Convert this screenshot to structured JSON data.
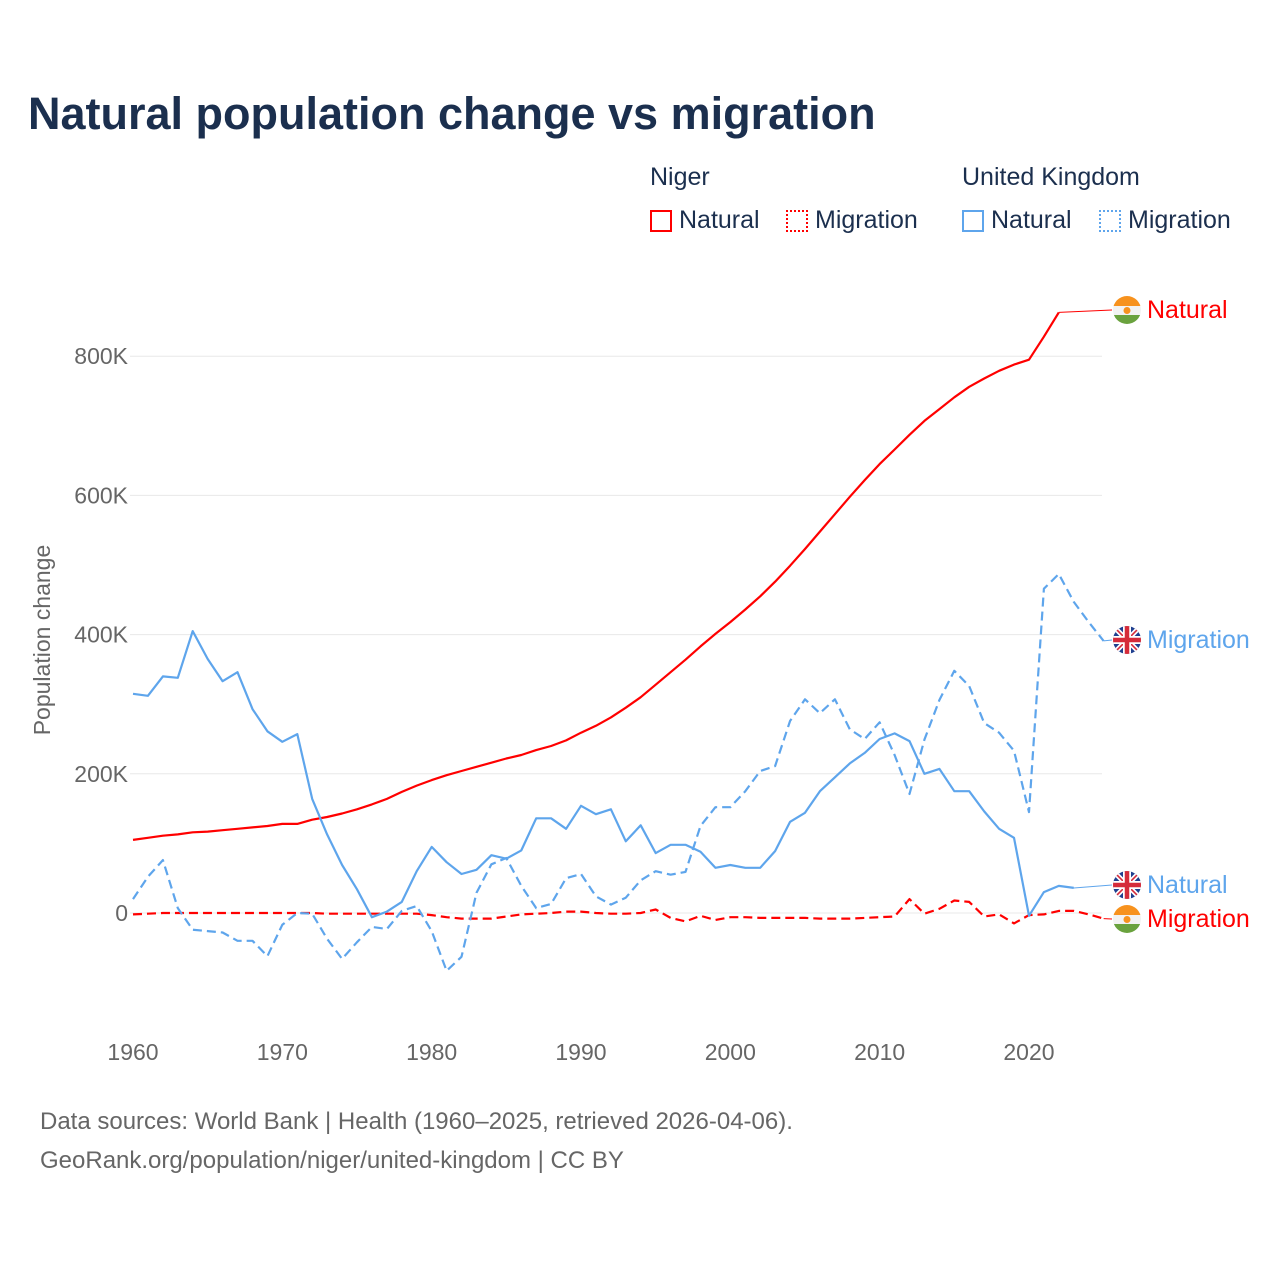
{
  "title": "Natural population change vs migration",
  "legend": {
    "groups": [
      {
        "name": "Niger",
        "items": [
          {
            "label": "Natural",
            "style": "solid"
          },
          {
            "label": "Migration",
            "style": "dotted"
          }
        ],
        "color": "#ff0000"
      },
      {
        "name": "United Kingdom",
        "items": [
          {
            "label": "Natural",
            "style": "solid"
          },
          {
            "label": "Migration",
            "style": "dotted"
          }
        ],
        "color": "#5ea5ec"
      }
    ]
  },
  "footer": {
    "line1": "Data sources: World Bank | Health (1960–2025, retrieved 2026-04-06).",
    "line2": "GeoRank.org/population/niger/united-kingdom | CC BY"
  },
  "chart_data": {
    "type": "line",
    "title": "Natural population change vs migration",
    "xlabel": "",
    "ylabel": "Population change",
    "xlim": [
      1960,
      2025
    ],
    "ylim": [
      -150000,
      900000
    ],
    "x_ticks": [
      "1960",
      "1970",
      "1980",
      "1990",
      "2000",
      "2010",
      "2020"
    ],
    "y_ticks": [
      {
        "value": 0,
        "label": "0"
      },
      {
        "value": 200000,
        "label": "200K"
      },
      {
        "value": 400000,
        "label": "400K"
      },
      {
        "value": 600000,
        "label": "600K"
      },
      {
        "value": 800000,
        "label": "800K"
      }
    ],
    "grid": true,
    "start_year": 1960,
    "series": [
      {
        "name": "Niger Natural",
        "end_label": "Natural",
        "country": "Niger",
        "color": "#ff0000",
        "dash": false,
        "values": [
          105,
          108,
          111,
          113,
          116,
          117,
          119,
          121,
          123,
          125,
          128,
          128,
          134,
          138,
          143,
          149,
          156,
          164,
          174,
          183,
          191,
          198,
          204,
          210,
          216,
          222,
          227,
          234,
          240,
          248,
          259,
          269,
          281,
          295,
          310,
          328,
          346,
          364,
          383,
          401,
          418,
          436,
          455,
          476,
          499,
          523,
          548,
          573,
          598,
          622,
          645,
          666,
          687,
          707,
          724,
          741,
          756,
          768,
          779,
          788,
          795,
          828,
          863
        ]
      },
      {
        "name": "Niger Migration",
        "end_label": "Migration",
        "country": "Niger",
        "color": "#ff0000",
        "dash": true,
        "values": [
          -2,
          -1,
          0,
          0,
          0,
          0,
          0,
          0,
          0,
          0,
          0,
          0,
          0,
          -1,
          -1,
          -1,
          -1,
          -1,
          -1,
          -1,
          -3,
          -6,
          -8,
          -8,
          -8,
          -5,
          -2,
          -1,
          0,
          2,
          2,
          0,
          -1,
          -1,
          0,
          5,
          -7,
          -12,
          -4,
          -10,
          -6,
          -6,
          -7,
          -7,
          -7,
          -7,
          -8,
          -8,
          -8,
          -7,
          -6,
          -5,
          20,
          -1,
          6,
          18,
          16,
          -5,
          -2,
          -15,
          -3,
          -2,
          3,
          3,
          -2,
          -8
        ]
      },
      {
        "name": "United Kingdom Natural",
        "end_label": "Natural",
        "country": "United Kingdom",
        "color": "#5ea5ec",
        "dash": false,
        "values": [
          315,
          312,
          340,
          338,
          405,
          365,
          333,
          346,
          293,
          261,
          246,
          257,
          164,
          113,
          69,
          34,
          -6,
          2,
          16,
          60,
          95,
          73,
          56,
          62,
          83,
          78,
          90,
          136,
          136,
          121,
          154,
          142,
          149,
          103,
          126,
          86,
          98,
          98,
          88,
          65,
          69,
          65,
          65,
          89,
          131,
          144,
          175,
          195,
          215,
          230,
          250,
          258,
          247,
          200,
          207,
          175,
          175,
          146,
          121,
          108,
          -4,
          30,
          39,
          36
        ]
      },
      {
        "name": "United Kingdom Migration",
        "end_label": "Migration",
        "country": "United Kingdom",
        "color": "#5ea5ec",
        "dash": true,
        "values": [
          20,
          52,
          76,
          7,
          -24,
          -26,
          -28,
          -40,
          -40,
          -62,
          -17,
          0,
          -1,
          -37,
          -66,
          -42,
          -20,
          -23,
          3,
          10,
          -26,
          -83,
          -63,
          29,
          70,
          79,
          39,
          7,
          13,
          50,
          56,
          24,
          12,
          22,
          47,
          60,
          55,
          59,
          125,
          152,
          152,
          175,
          204,
          211,
          276,
          307,
          287,
          307,
          264,
          250,
          274,
          227,
          171,
          249,
          306,
          348,
          326,
          273,
          259,
          233,
          145,
          466,
          487,
          447,
          418,
          391
        ]
      }
    ],
    "units": "thousands"
  }
}
